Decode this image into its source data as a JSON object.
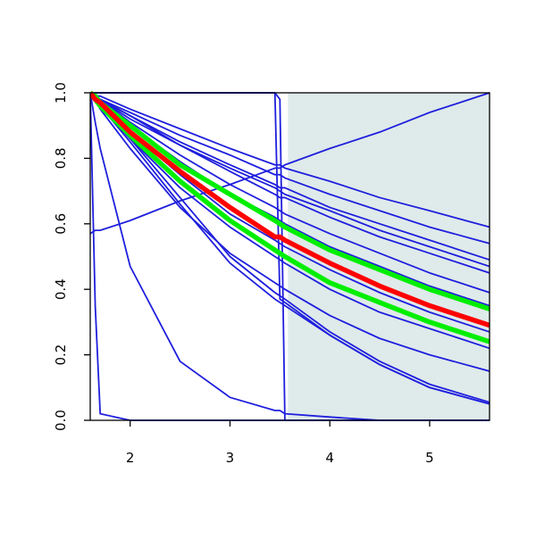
{
  "chart_data": {
    "type": "line",
    "x": [
      1.6,
      1.65,
      1.7,
      2.0,
      2.5,
      3.0,
      3.45,
      3.5,
      3.55,
      4.0,
      4.5,
      5.0,
      5.6
    ],
    "xlim": [
      1.6,
      5.6
    ],
    "xticks": [
      2,
      3,
      4,
      5
    ],
    "ylim": [
      0,
      1
    ],
    "yticks": [
      {
        "value": 0,
        "label": "0.0"
      },
      {
        "value": 0.2,
        "label": "0.2"
      },
      {
        "value": 0.4,
        "label": "0.4"
      },
      {
        "value": 0.6,
        "label": "0.6"
      },
      {
        "value": 0.8,
        "label": "0.8"
      },
      {
        "value": 1,
        "label": "1.0"
      }
    ],
    "shade": {
      "xrange": [
        3.58,
        5.6
      ],
      "color": "#dfeaea"
    },
    "series": [
      {
        "color": "#1f1fdd",
        "values": [
          1,
          0.99,
          0.99,
          0.95,
          0.89,
          0.83,
          0.78,
          0.78,
          0.77,
          0.73,
          0.68,
          0.64,
          0.59
        ]
      },
      {
        "color": "#1f1fdd",
        "values": [
          1,
          0.99,
          0.98,
          0.94,
          0.87,
          0.81,
          0.75,
          0.75,
          0.74,
          0.69,
          0.64,
          0.59,
          0.54
        ]
      },
      {
        "color": "#1f1fdd",
        "values": [
          1,
          0.99,
          0.98,
          0.93,
          0.85,
          0.78,
          0.72,
          0.71,
          0.71,
          0.65,
          0.6,
          0.55,
          0.49
        ]
      },
      {
        "color": "#1f1fdd",
        "values": [
          1,
          0.99,
          0.98,
          0.93,
          0.84,
          0.77,
          0.71,
          0.7,
          0.69,
          0.64,
          0.58,
          0.53,
          0.47
        ]
      },
      {
        "color": "#1f1fdd",
        "values": [
          1,
          0.99,
          0.98,
          0.92,
          0.84,
          0.76,
          0.69,
          0.68,
          0.68,
          0.62,
          0.56,
          0.51,
          0.45
        ]
      },
      {
        "color": "#1f1fdd",
        "values": [
          1,
          0.99,
          0.98,
          0.91,
          0.81,
          0.72,
          0.65,
          0.64,
          0.63,
          0.57,
          0.51,
          0.45,
          0.39
        ]
      },
      {
        "color": "#1f1fdd",
        "values": [
          1,
          0.99,
          0.97,
          0.9,
          0.79,
          0.69,
          0.62,
          0.61,
          0.6,
          0.53,
          0.47,
          0.41,
          0.35
        ]
      },
      {
        "color": "#1f1fdd",
        "values": [
          1,
          0.98,
          0.97,
          0.88,
          0.75,
          0.63,
          0.55,
          0.54,
          0.53,
          0.46,
          0.39,
          0.33,
          0.27
        ]
      },
      {
        "color": "#1f1fdd",
        "values": [
          1,
          0.98,
          0.96,
          0.86,
          0.71,
          0.59,
          0.5,
          0.49,
          0.48,
          0.4,
          0.33,
          0.28,
          0.22
        ]
      },
      {
        "color": "#1f1fdd",
        "values": [
          1,
          0.98,
          0.95,
          0.83,
          0.65,
          0.51,
          0.42,
          0.41,
          0.4,
          0.32,
          0.25,
          0.2,
          0.15
        ]
      },
      {
        "color": "#1f1fdd",
        "values": [
          1,
          0.98,
          0.96,
          0.85,
          0.66,
          0.48,
          0.37,
          0.36,
          0.35,
          0.26,
          0.17,
          0.1,
          0.05
        ]
      },
      {
        "color": "#1f1fdd",
        "values": [
          1,
          0.98,
          0.96,
          0.86,
          0.68,
          0.5,
          0.39,
          0.38,
          0.37,
          0.27,
          0.18,
          0.11,
          0.055
        ]
      },
      {
        "color": "#1f1fdd",
        "values": [
          1,
          1,
          1,
          1,
          1,
          1,
          1,
          0.37,
          0.36,
          0.26,
          0.17,
          0.1,
          0.05
        ]
      },
      {
        "color": "#1f1fdd",
        "values": [
          1,
          1,
          1,
          1,
          1,
          1,
          1,
          0.98,
          0,
          0,
          0,
          0,
          0
        ]
      },
      {
        "color": "#1f1fdd",
        "values": [
          1,
          0.91,
          0.83,
          0.47,
          0.18,
          0.07,
          0.03,
          0.03,
          0.02,
          0.01,
          0,
          0,
          0
        ]
      },
      {
        "color": "#1f1fdd",
        "values": [
          1,
          0.35,
          0.02,
          0,
          0,
          0,
          0,
          0,
          0,
          0,
          0,
          0,
          0
        ]
      },
      {
        "color": "#1f1fdd",
        "values": [
          0.57,
          0.58,
          0.58,
          0.61,
          0.67,
          0.72,
          0.77,
          0.77,
          0.78,
          0.83,
          0.88,
          0.94,
          1.0
        ]
      },
      {
        "color": "#00ee00",
        "values": [
          1,
          0.99,
          0.97,
          0.9,
          0.78,
          0.69,
          0.61,
          0.6,
          0.59,
          0.52,
          0.46,
          0.4,
          0.34
        ]
      },
      {
        "color": "#00ee00",
        "values": [
          1,
          0.98,
          0.96,
          0.87,
          0.73,
          0.61,
          0.52,
          0.51,
          0.5,
          0.42,
          0.36,
          0.3,
          0.24
        ]
      },
      {
        "color": "#ff0000",
        "values": [
          1,
          0.98,
          0.97,
          0.88,
          0.76,
          0.65,
          0.56,
          0.56,
          0.55,
          0.48,
          0.41,
          0.35,
          0.29
        ]
      }
    ]
  }
}
